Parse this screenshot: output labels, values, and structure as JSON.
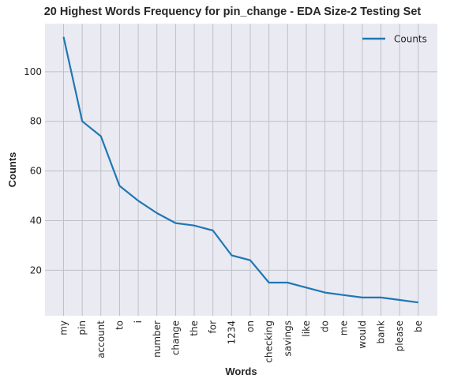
{
  "chart_data": {
    "type": "line",
    "title": "20 Highest Words Frequency for pin_change - EDA Size-2 Testing Set",
    "xlabel": "Words",
    "ylabel": "Counts",
    "categories": [
      "my",
      "pin",
      "account",
      "to",
      "i",
      "number",
      "change",
      "the",
      "for",
      "1234",
      "on",
      "checking",
      "savings",
      "like",
      "do",
      "me",
      "would",
      "bank",
      "please",
      "be"
    ],
    "series": [
      {
        "name": "Counts",
        "values": [
          114,
          80,
          74,
          54,
          48,
          43,
          39,
          38,
          36,
          26,
          24,
          15,
          15,
          13,
          11,
          10,
          9,
          9,
          8,
          7
        ],
        "color": "#1f77b4"
      }
    ],
    "y_ticks": [
      20,
      40,
      60,
      80,
      100
    ],
    "ylim": [
      1.65,
      119.35
    ],
    "grid": true,
    "legend_position": "top-right",
    "plot_background": "#eaeaf2",
    "grid_color": "#c0c0c8"
  }
}
